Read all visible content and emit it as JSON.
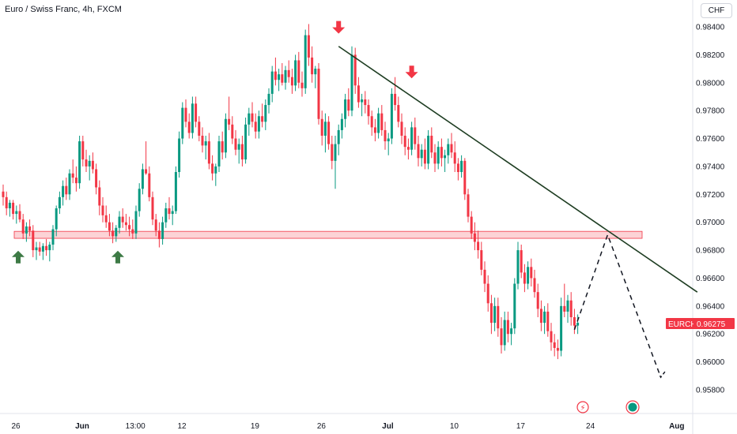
{
  "header": {
    "title": "Euro / Swiss Franc, 4h, FXCM",
    "currency_label": "CHF"
  },
  "chart_data": {
    "type": "candlestick",
    "symbol": "EURCHF",
    "last_price_label": "0.96275",
    "last_price": 0.96275,
    "ylim": [
      0.9573,
      0.9856
    ],
    "y_ticks": [
      "0.98400",
      "0.98200",
      "0.98000",
      "0.97800",
      "0.97600",
      "0.97400",
      "0.97200",
      "0.97000",
      "0.96800",
      "0.96600",
      "0.96400",
      "0.96200",
      "0.96000",
      "0.95800"
    ],
    "y_tick_values": [
      0.984,
      0.982,
      0.98,
      0.978,
      0.976,
      0.974,
      0.972,
      0.97,
      0.968,
      0.966,
      0.964,
      0.962,
      0.96,
      0.958
    ],
    "x_tick_labels": [
      "26",
      "Jun",
      "13:00",
      "12",
      "19",
      "26",
      "Jul",
      "10",
      "17",
      "24",
      "Aug"
    ],
    "x_tick_index": [
      0,
      20,
      36,
      50,
      72,
      92,
      112,
      132,
      152,
      173,
      199
    ],
    "support_zone": {
      "low": 0.96885,
      "high": 0.96935,
      "from_index": 0,
      "to_index": 190
    },
    "trendline": {
      "from": [
        101,
        0.9826
      ],
      "to": [
        209,
        0.965
      ]
    },
    "projection_path": [
      [
        172,
        0.9623
      ],
      [
        182,
        0.9691
      ],
      [
        198,
        0.9589
      ]
    ],
    "up_arrows_at": [
      [
        5,
        0.9683
      ],
      [
        35,
        0.9683
      ]
    ],
    "down_arrows_at": [
      [
        101,
        0.9834
      ],
      [
        123,
        0.9802
      ]
    ],
    "candles_ohlc": [
      [
        0.9722,
        0.9727,
        0.9712,
        0.9718
      ],
      [
        0.9718,
        0.9722,
        0.9705,
        0.971
      ],
      [
        0.971,
        0.9716,
        0.9704,
        0.9714
      ],
      [
        0.9714,
        0.9716,
        0.9702,
        0.9706
      ],
      [
        0.9706,
        0.9712,
        0.9699,
        0.9708
      ],
      [
        0.9708,
        0.9713,
        0.97,
        0.9702
      ],
      [
        0.9702,
        0.9706,
        0.9688,
        0.9692
      ],
      [
        0.9692,
        0.97,
        0.9686,
        0.9697
      ],
      [
        0.9697,
        0.9702,
        0.969,
        0.9694
      ],
      [
        0.9694,
        0.9698,
        0.9675,
        0.968
      ],
      [
        0.968,
        0.9686,
        0.9673,
        0.9682
      ],
      [
        0.9682,
        0.9686,
        0.9676,
        0.9679
      ],
      [
        0.9679,
        0.9685,
        0.9673,
        0.9683
      ],
      [
        0.9683,
        0.9688,
        0.9676,
        0.968
      ],
      [
        0.968,
        0.9686,
        0.9672,
        0.9684
      ],
      [
        0.9684,
        0.9698,
        0.968,
        0.9695
      ],
      [
        0.9695,
        0.9712,
        0.969,
        0.971
      ],
      [
        0.971,
        0.9722,
        0.9706,
        0.9718
      ],
      [
        0.9718,
        0.973,
        0.9712,
        0.9726
      ],
      [
        0.9726,
        0.9732,
        0.9716,
        0.972
      ],
      [
        0.972,
        0.9738,
        0.9716,
        0.9735
      ],
      [
        0.9735,
        0.9745,
        0.9728,
        0.9732
      ],
      [
        0.9732,
        0.974,
        0.9722,
        0.9728
      ],
      [
        0.9728,
        0.9762,
        0.9724,
        0.9758
      ],
      [
        0.9758,
        0.9762,
        0.974,
        0.9745
      ],
      [
        0.9745,
        0.9752,
        0.9736,
        0.974
      ],
      [
        0.974,
        0.9748,
        0.973,
        0.9744
      ],
      [
        0.9744,
        0.975,
        0.9735,
        0.9738
      ],
      [
        0.9738,
        0.9742,
        0.972,
        0.9725
      ],
      [
        0.9725,
        0.973,
        0.9705,
        0.9712
      ],
      [
        0.9712,
        0.9718,
        0.97,
        0.9705
      ],
      [
        0.9705,
        0.9712,
        0.9696,
        0.97
      ],
      [
        0.97,
        0.9706,
        0.969,
        0.9694
      ],
      [
        0.9694,
        0.97,
        0.9685,
        0.969
      ],
      [
        0.969,
        0.9698,
        0.9686,
        0.9696
      ],
      [
        0.9696,
        0.9708,
        0.9692,
        0.9704
      ],
      [
        0.9704,
        0.971,
        0.9696,
        0.97
      ],
      [
        0.97,
        0.9706,
        0.9694,
        0.9698
      ],
      [
        0.9698,
        0.9704,
        0.969,
        0.9695
      ],
      [
        0.9695,
        0.9702,
        0.9688,
        0.9692
      ],
      [
        0.9692,
        0.9712,
        0.9688,
        0.9708
      ],
      [
        0.9708,
        0.9728,
        0.9704,
        0.9724
      ],
      [
        0.9724,
        0.9742,
        0.972,
        0.9738
      ],
      [
        0.9738,
        0.9758,
        0.9734,
        0.9735
      ],
      [
        0.9735,
        0.974,
        0.9715,
        0.9718
      ],
      [
        0.9718,
        0.9722,
        0.9698,
        0.9702
      ],
      [
        0.9702,
        0.9706,
        0.969,
        0.9694
      ],
      [
        0.9694,
        0.97,
        0.9682,
        0.9688
      ],
      [
        0.9688,
        0.9704,
        0.9684,
        0.97
      ],
      [
        0.97,
        0.9714,
        0.9696,
        0.971
      ],
      [
        0.971,
        0.9718,
        0.9702,
        0.9706
      ],
      [
        0.9706,
        0.9712,
        0.9698,
        0.9708
      ],
      [
        0.9708,
        0.974,
        0.9706,
        0.9736
      ],
      [
        0.9736,
        0.9765,
        0.9732,
        0.976
      ],
      [
        0.976,
        0.9786,
        0.9756,
        0.9782
      ],
      [
        0.9782,
        0.9788,
        0.9768,
        0.9772
      ],
      [
        0.9772,
        0.9778,
        0.976,
        0.9764
      ],
      [
        0.9764,
        0.979,
        0.976,
        0.9785
      ],
      [
        0.9785,
        0.979,
        0.9768,
        0.9772
      ],
      [
        0.9772,
        0.9776,
        0.9758,
        0.9762
      ],
      [
        0.9762,
        0.9768,
        0.975,
        0.9755
      ],
      [
        0.9755,
        0.9762,
        0.9745,
        0.9758
      ],
      [
        0.9758,
        0.9764,
        0.9738,
        0.9742
      ],
      [
        0.9742,
        0.9748,
        0.973,
        0.9735
      ],
      [
        0.9735,
        0.9742,
        0.9726,
        0.974
      ],
      [
        0.974,
        0.9762,
        0.9736,
        0.9758
      ],
      [
        0.9758,
        0.9765,
        0.9745,
        0.975
      ],
      [
        0.975,
        0.9778,
        0.9746,
        0.9774
      ],
      [
        0.9774,
        0.979,
        0.9766,
        0.977
      ],
      [
        0.977,
        0.9776,
        0.9756,
        0.976
      ],
      [
        0.976,
        0.9766,
        0.9748,
        0.9752
      ],
      [
        0.9752,
        0.976,
        0.9742,
        0.9756
      ],
      [
        0.9756,
        0.9762,
        0.974,
        0.9745
      ],
      [
        0.9745,
        0.9775,
        0.9742,
        0.977
      ],
      [
        0.977,
        0.9782,
        0.9762,
        0.9778
      ],
      [
        0.9778,
        0.9786,
        0.9768,
        0.9772
      ],
      [
        0.9772,
        0.9778,
        0.976,
        0.9765
      ],
      [
        0.9765,
        0.978,
        0.976,
        0.9776
      ],
      [
        0.9776,
        0.9785,
        0.9768,
        0.9772
      ],
      [
        0.9772,
        0.9788,
        0.9766,
        0.9784
      ],
      [
        0.9784,
        0.9796,
        0.9778,
        0.9792
      ],
      [
        0.9792,
        0.9812,
        0.9786,
        0.9808
      ],
      [
        0.9808,
        0.9818,
        0.9798,
        0.9802
      ],
      [
        0.9802,
        0.981,
        0.9794,
        0.9806
      ],
      [
        0.9806,
        0.9814,
        0.9798,
        0.98
      ],
      [
        0.98,
        0.9812,
        0.9795,
        0.9809
      ],
      [
        0.9809,
        0.9816,
        0.98,
        0.9804
      ],
      [
        0.9804,
        0.981,
        0.9792,
        0.9798
      ],
      [
        0.9798,
        0.982,
        0.9794,
        0.9816
      ],
      [
        0.9816,
        0.9822,
        0.9796,
        0.98
      ],
      [
        0.98,
        0.9808,
        0.979,
        0.9796
      ],
      [
        0.9796,
        0.9838,
        0.9792,
        0.9834
      ],
      [
        0.9834,
        0.9842,
        0.9812,
        0.9818
      ],
      [
        0.9818,
        0.9826,
        0.98,
        0.9806
      ],
      [
        0.9806,
        0.9812,
        0.9796,
        0.981
      ],
      [
        0.981,
        0.9814,
        0.977,
        0.9774
      ],
      [
        0.9774,
        0.978,
        0.9755,
        0.9762
      ],
      [
        0.9762,
        0.9778,
        0.975,
        0.9772
      ],
      [
        0.9772,
        0.9776,
        0.9752,
        0.9756
      ],
      [
        0.9756,
        0.9762,
        0.9738,
        0.9744
      ],
      [
        0.9744,
        0.9762,
        0.9724,
        0.9756
      ],
      [
        0.9756,
        0.977,
        0.9748,
        0.9766
      ],
      [
        0.9766,
        0.9778,
        0.976,
        0.9774
      ],
      [
        0.9774,
        0.9792,
        0.9768,
        0.9788
      ],
      [
        0.9788,
        0.9796,
        0.9776,
        0.978
      ],
      [
        0.978,
        0.9826,
        0.9776,
        0.982
      ],
      [
        0.982,
        0.9825,
        0.9792,
        0.9798
      ],
      [
        0.9798,
        0.9804,
        0.9782,
        0.9786
      ],
      [
        0.9786,
        0.9792,
        0.9776,
        0.9788
      ],
      [
        0.9788,
        0.9794,
        0.9778,
        0.9784
      ],
      [
        0.9784,
        0.9788,
        0.977,
        0.9776
      ],
      [
        0.9776,
        0.978,
        0.9762,
        0.9768
      ],
      [
        0.9768,
        0.9774,
        0.9758,
        0.9764
      ],
      [
        0.9764,
        0.9782,
        0.976,
        0.9778
      ],
      [
        0.9778,
        0.9784,
        0.9762,
        0.9766
      ],
      [
        0.9766,
        0.9772,
        0.9752,
        0.9758
      ],
      [
        0.9758,
        0.9764,
        0.9748,
        0.976
      ],
      [
        0.976,
        0.9796,
        0.9756,
        0.9792
      ],
      [
        0.9792,
        0.9804,
        0.978,
        0.9784
      ],
      [
        0.9784,
        0.979,
        0.9768,
        0.9772
      ],
      [
        0.9772,
        0.9778,
        0.9756,
        0.9762
      ],
      [
        0.9762,
        0.9768,
        0.9748,
        0.9754
      ],
      [
        0.9754,
        0.976,
        0.9745,
        0.9752
      ],
      [
        0.9752,
        0.9772,
        0.9748,
        0.9768
      ],
      [
        0.9768,
        0.9775,
        0.9752,
        0.9756
      ],
      [
        0.9756,
        0.9762,
        0.974,
        0.9746
      ],
      [
        0.9746,
        0.9756,
        0.974,
        0.9752
      ],
      [
        0.9752,
        0.976,
        0.9738,
        0.9742
      ],
      [
        0.9742,
        0.9766,
        0.9738,
        0.9762
      ],
      [
        0.9762,
        0.9768,
        0.9746,
        0.975
      ],
      [
        0.975,
        0.9756,
        0.9736,
        0.9742
      ],
      [
        0.9742,
        0.9758,
        0.9738,
        0.9754
      ],
      [
        0.9754,
        0.976,
        0.974,
        0.9746
      ],
      [
        0.9746,
        0.9752,
        0.9736,
        0.9748
      ],
      [
        0.9748,
        0.976,
        0.9742,
        0.9756
      ],
      [
        0.9756,
        0.9764,
        0.9746,
        0.975
      ],
      [
        0.975,
        0.9758,
        0.9736,
        0.9742
      ],
      [
        0.9742,
        0.9746,
        0.973,
        0.9736
      ],
      [
        0.9736,
        0.9748,
        0.9732,
        0.9744
      ],
      [
        0.9744,
        0.9746,
        0.9716,
        0.972
      ],
      [
        0.972,
        0.9724,
        0.97,
        0.9704
      ],
      [
        0.9704,
        0.9708,
        0.9688,
        0.9692
      ],
      [
        0.9692,
        0.97,
        0.968,
        0.9686
      ],
      [
        0.9686,
        0.9694,
        0.9674,
        0.968
      ],
      [
        0.968,
        0.9686,
        0.9662,
        0.9666
      ],
      [
        0.9666,
        0.9672,
        0.965,
        0.9656
      ],
      [
        0.9656,
        0.9662,
        0.9636,
        0.9642
      ],
      [
        0.9642,
        0.9648,
        0.962,
        0.9628
      ],
      [
        0.9628,
        0.9646,
        0.9622,
        0.964
      ],
      [
        0.964,
        0.9646,
        0.9618,
        0.9624
      ],
      [
        0.9624,
        0.9632,
        0.9606,
        0.9612
      ],
      [
        0.9612,
        0.9636,
        0.9608,
        0.963
      ],
      [
        0.963,
        0.9636,
        0.9614,
        0.962
      ],
      [
        0.962,
        0.9628,
        0.9612,
        0.9624
      ],
      [
        0.9624,
        0.966,
        0.962,
        0.9656
      ],
      [
        0.9656,
        0.9686,
        0.9652,
        0.968
      ],
      [
        0.968,
        0.9684,
        0.966,
        0.9664
      ],
      [
        0.9664,
        0.967,
        0.965,
        0.9656
      ],
      [
        0.9656,
        0.9672,
        0.9652,
        0.9668
      ],
      [
        0.9668,
        0.9674,
        0.9654,
        0.966
      ],
      [
        0.966,
        0.9666,
        0.9646,
        0.965
      ],
      [
        0.965,
        0.9656,
        0.9632,
        0.9638
      ],
      [
        0.9638,
        0.9644,
        0.9622,
        0.9628
      ],
      [
        0.9628,
        0.964,
        0.962,
        0.9636
      ],
      [
        0.9636,
        0.9642,
        0.9618,
        0.9622
      ],
      [
        0.9622,
        0.9628,
        0.9608,
        0.9614
      ],
      [
        0.9614,
        0.962,
        0.9604,
        0.961
      ],
      [
        0.961,
        0.9616,
        0.9602,
        0.9608
      ],
      [
        0.9608,
        0.9646,
        0.9604,
        0.964
      ],
      [
        0.964,
        0.9656,
        0.9632,
        0.9636
      ],
      [
        0.9636,
        0.9648,
        0.9628,
        0.9644
      ],
      [
        0.9644,
        0.965,
        0.9626,
        0.9632
      ],
      [
        0.9632,
        0.9638,
        0.962,
        0.9626
      ],
      [
        0.9626,
        0.9634,
        0.962,
        0.9628
      ]
    ]
  },
  "footer": {
    "flash_icon_glyph": "⚡"
  }
}
